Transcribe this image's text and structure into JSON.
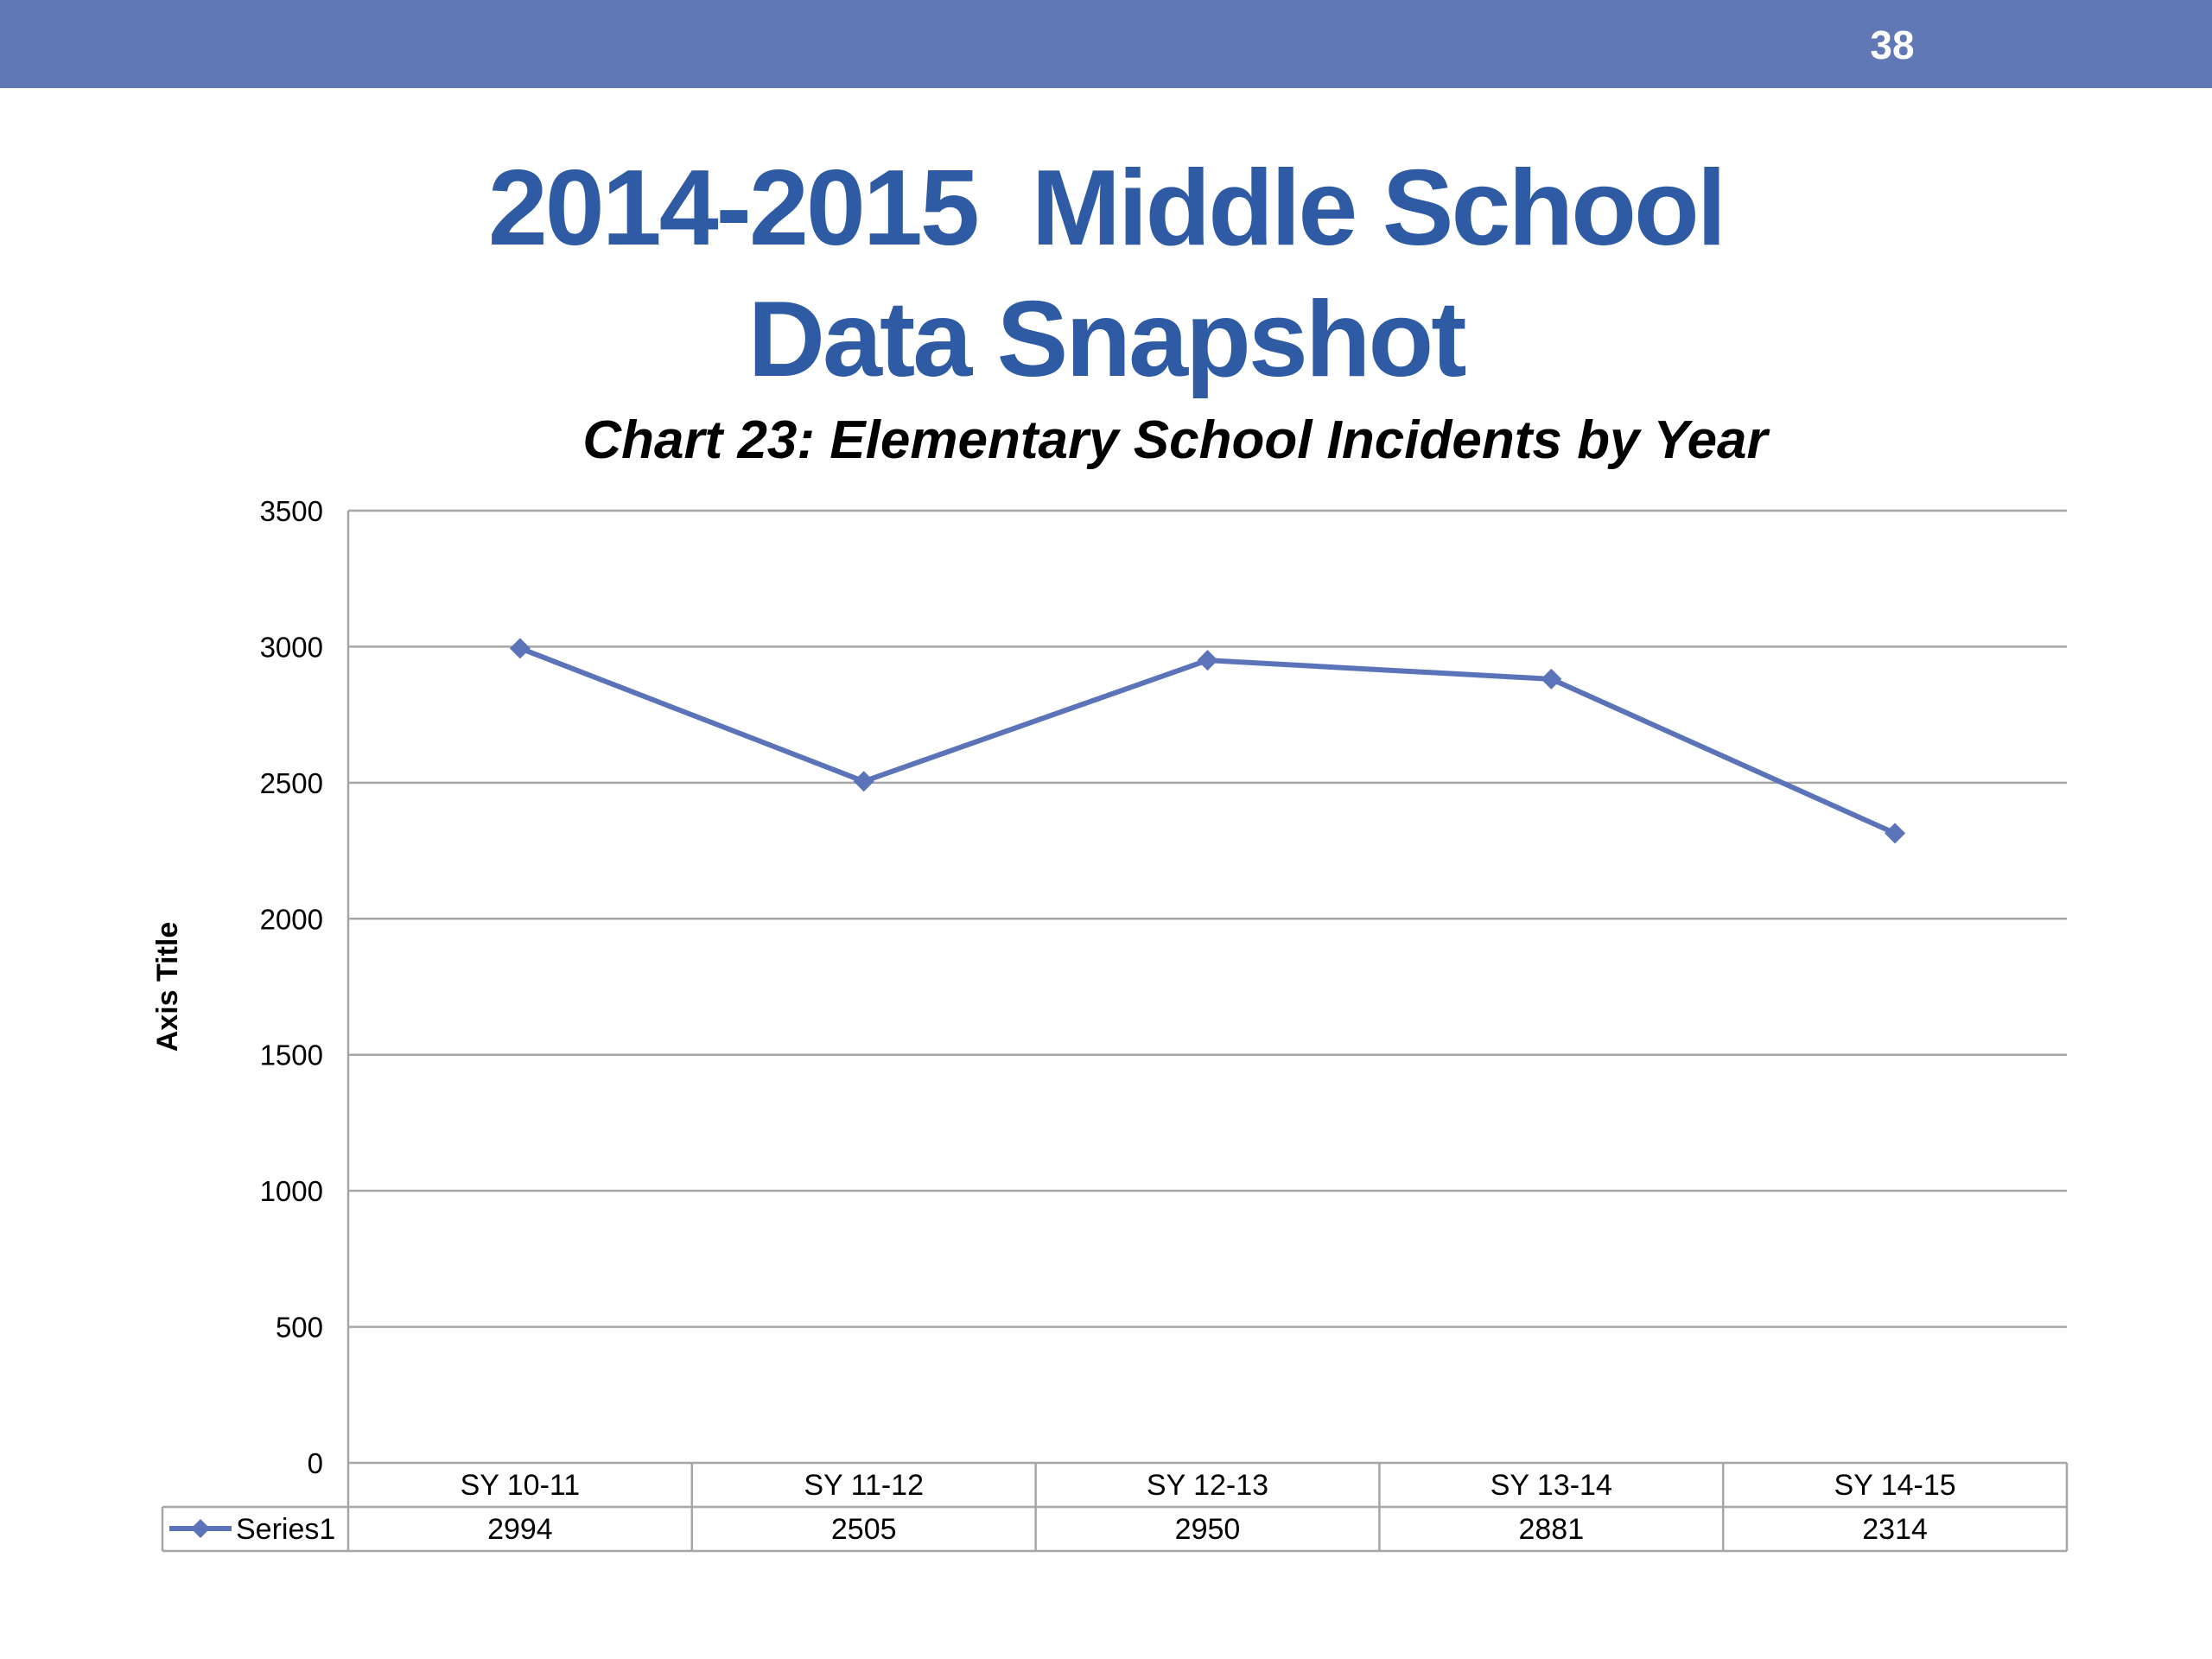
{
  "page": {
    "number": "38",
    "title_line1": "2014-2015  Middle School",
    "title_line2": "Data Snapshot"
  },
  "colors": {
    "top_bar": "#6178b6",
    "title": "#2e5ba4",
    "series": "#5b73b8",
    "grid": "#a6a6a6"
  },
  "chart_data": {
    "type": "line",
    "title": "Chart 23: Elementary School Incidents by Year",
    "ylabel": "Axis Title",
    "xlabel": "",
    "ylim": [
      0,
      3500
    ],
    "yticks": [
      0,
      500,
      1000,
      1500,
      2000,
      2500,
      3000,
      3500
    ],
    "categories": [
      "SY 10-11",
      "SY 11-12",
      "SY 12-13",
      "SY 13-14",
      "SY 14-15"
    ],
    "series": [
      {
        "name": "Series1",
        "values": [
          2994,
          2505,
          2950,
          2881,
          2314
        ],
        "marker": "diamond"
      }
    ],
    "grid": true,
    "data_table": true
  }
}
